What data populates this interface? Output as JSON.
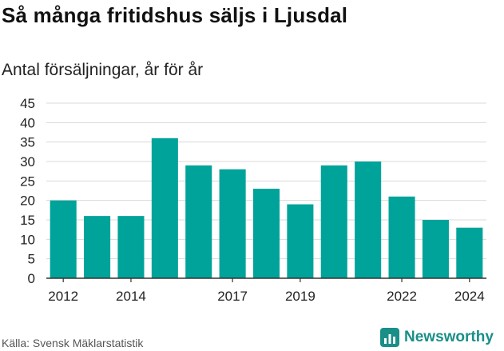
{
  "header": {
    "title": "Så många fritidshus säljs i Ljusdal",
    "subtitle": "Antal försäljningar, år för år"
  },
  "footer": {
    "source": "Källa: Svensk Mäklarstatistik",
    "brand": "Newsworthy",
    "brand_icon": "bar-chart-logo-icon"
  },
  "colors": {
    "bar": "#00a39a",
    "grid": "#d9d9d9",
    "brand": "#1a8f88"
  },
  "chart_data": {
    "type": "bar",
    "categories": [
      "2012",
      "2013",
      "2014",
      "2015",
      "2016",
      "2017",
      "2018",
      "2019",
      "2020",
      "2021",
      "2022",
      "2023",
      "2024"
    ],
    "values": [
      20,
      16,
      16,
      36,
      29,
      28,
      23,
      19,
      29,
      30,
      21,
      15,
      13
    ],
    "x_tick_labels": [
      "2012",
      "2014",
      "2017",
      "2019",
      "2022",
      "2024"
    ],
    "y_ticks": [
      0,
      5,
      10,
      15,
      20,
      25,
      30,
      35,
      40,
      45
    ],
    "ylim": [
      0,
      45
    ],
    "title": "Så många fritidshus säljs i Ljusdal",
    "subtitle": "Antal försäljningar, år för år",
    "xlabel": "",
    "ylabel": "",
    "grid": true,
    "legend": "none"
  }
}
